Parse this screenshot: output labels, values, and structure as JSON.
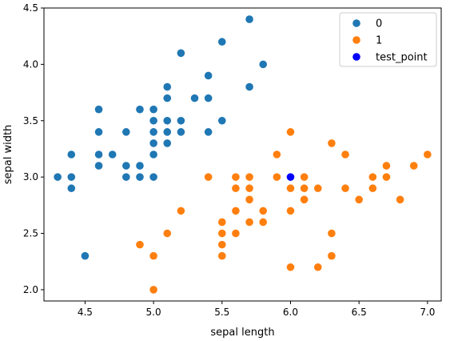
{
  "chart_data": {
    "type": "scatter",
    "title": "",
    "xlabel": "sepal length",
    "ylabel": "sepal width",
    "xlim": [
      4.2,
      7.1
    ],
    "ylim": [
      1.9,
      4.5
    ],
    "grid": false,
    "legend_position": "top-right",
    "x_ticks": [
      {
        "value": 4.5,
        "label": "4.5"
      },
      {
        "value": 5.0,
        "label": "5.0"
      },
      {
        "value": 5.5,
        "label": "5.5"
      },
      {
        "value": 6.0,
        "label": "6.0"
      },
      {
        "value": 6.5,
        "label": "6.5"
      },
      {
        "value": 7.0,
        "label": "7.0"
      }
    ],
    "y_ticks": [
      {
        "value": 2.0,
        "label": "2.0"
      },
      {
        "value": 2.5,
        "label": "2.5"
      },
      {
        "value": 3.0,
        "label": "3.0"
      },
      {
        "value": 3.5,
        "label": "3.5"
      },
      {
        "value": 4.0,
        "label": "4.0"
      },
      {
        "value": 4.5,
        "label": "4.5"
      }
    ],
    "series": [
      {
        "name": "0",
        "color": "#1f77b4",
        "points": [
          [
            5.7,
            4.4
          ],
          [
            5.5,
            4.2
          ],
          [
            5.2,
            4.1
          ],
          [
            5.8,
            4.0
          ],
          [
            5.4,
            3.9
          ],
          [
            5.1,
            3.8
          ],
          [
            5.7,
            3.8
          ],
          [
            5.1,
            3.7
          ],
          [
            5.3,
            3.7
          ],
          [
            5.4,
            3.7
          ],
          [
            4.6,
            3.6
          ],
          [
            4.9,
            3.6
          ],
          [
            5.0,
            3.6
          ],
          [
            5.0,
            3.5
          ],
          [
            5.1,
            3.5
          ],
          [
            5.2,
            3.5
          ],
          [
            5.5,
            3.5
          ],
          [
            4.6,
            3.4
          ],
          [
            4.8,
            3.4
          ],
          [
            5.0,
            3.4
          ],
          [
            5.1,
            3.4
          ],
          [
            5.2,
            3.4
          ],
          [
            5.4,
            3.4
          ],
          [
            5.0,
            3.3
          ],
          [
            5.1,
            3.3
          ],
          [
            4.4,
            3.2
          ],
          [
            4.6,
            3.2
          ],
          [
            4.7,
            3.2
          ],
          [
            5.0,
            3.2
          ],
          [
            4.6,
            3.1
          ],
          [
            4.8,
            3.1
          ],
          [
            4.9,
            3.1
          ],
          [
            4.3,
            3.0
          ],
          [
            4.4,
            3.0
          ],
          [
            4.8,
            3.0
          ],
          [
            4.9,
            3.0
          ],
          [
            5.0,
            3.0
          ],
          [
            4.4,
            2.9
          ],
          [
            4.5,
            2.3
          ]
        ]
      },
      {
        "name": "1",
        "color": "#ff7f0e",
        "points": [
          [
            6.0,
            3.4
          ],
          [
            6.3,
            3.3
          ],
          [
            5.9,
            3.2
          ],
          [
            6.4,
            3.2
          ],
          [
            7.0,
            3.2
          ],
          [
            6.7,
            3.1
          ],
          [
            6.9,
            3.1
          ],
          [
            5.4,
            3.0
          ],
          [
            5.6,
            3.0
          ],
          [
            5.7,
            3.0
          ],
          [
            5.9,
            3.0
          ],
          [
            6.1,
            3.0
          ],
          [
            6.6,
            3.0
          ],
          [
            6.7,
            3.0
          ],
          [
            5.6,
            2.9
          ],
          [
            5.7,
            2.9
          ],
          [
            6.0,
            2.9
          ],
          [
            6.1,
            2.9
          ],
          [
            6.2,
            2.9
          ],
          [
            6.4,
            2.9
          ],
          [
            6.6,
            2.9
          ],
          [
            5.7,
            2.8
          ],
          [
            6.1,
            2.8
          ],
          [
            6.5,
            2.8
          ],
          [
            6.8,
            2.8
          ],
          [
            5.2,
            2.7
          ],
          [
            5.6,
            2.7
          ],
          [
            5.8,
            2.7
          ],
          [
            6.0,
            2.7
          ],
          [
            5.5,
            2.6
          ],
          [
            5.7,
            2.6
          ],
          [
            5.8,
            2.6
          ],
          [
            5.1,
            2.5
          ],
          [
            5.5,
            2.5
          ],
          [
            5.6,
            2.5
          ],
          [
            6.3,
            2.5
          ],
          [
            4.9,
            2.4
          ],
          [
            5.5,
            2.4
          ],
          [
            5.0,
            2.3
          ],
          [
            5.5,
            2.3
          ],
          [
            6.3,
            2.3
          ],
          [
            6.0,
            2.2
          ],
          [
            6.2,
            2.2
          ],
          [
            5.0,
            2.0
          ]
        ]
      },
      {
        "name": "test_point",
        "color": "#0000ff",
        "points": [
          [
            6.0,
            3.0
          ]
        ]
      }
    ]
  }
}
